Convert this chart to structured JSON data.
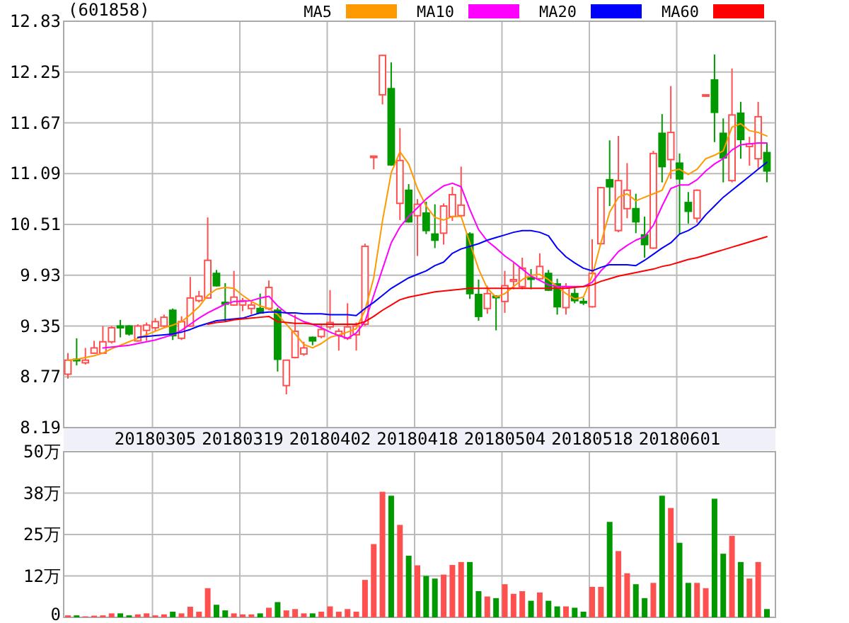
{
  "chart_data": [
    {
      "type": "candlestick",
      "title": "(601858)",
      "categories": [
        null,
        null,
        null,
        null,
        null,
        null,
        null,
        null,
        null,
        null,
        "20180305",
        null,
        null,
        null,
        null,
        null,
        null,
        null,
        null,
        null,
        "20180319",
        null,
        null,
        null,
        null,
        null,
        null,
        null,
        null,
        null,
        "20180402",
        null,
        null,
        null,
        null,
        null,
        null,
        null,
        null,
        null,
        "20180418",
        null,
        null,
        null,
        null,
        null,
        null,
        null,
        null,
        null,
        "20180504",
        null,
        null,
        null,
        null,
        null,
        null,
        null,
        null,
        null,
        "20180518",
        null,
        null,
        null,
        null,
        null,
        null,
        null,
        null,
        null,
        "20180601",
        null,
        null,
        null,
        null,
        null,
        null,
        null,
        null,
        null,
        null
      ],
      "ohlc": [
        [
          8.8,
          9.04,
          8.75,
          8.96
        ],
        [
          8.97,
          9.21,
          8.9,
          8.96
        ],
        [
          8.93,
          9.1,
          8.91,
          8.96
        ],
        [
          9.04,
          9.18,
          9.03,
          9.1
        ],
        [
          9.04,
          9.35,
          9.03,
          9.17
        ],
        [
          9.17,
          9.35,
          9.15,
          9.33
        ],
        [
          9.35,
          9.42,
          9.22,
          9.33
        ],
        [
          9.35,
          9.36,
          9.24,
          9.26
        ],
        [
          9.18,
          9.37,
          9.17,
          9.35
        ],
        [
          9.3,
          9.39,
          9.18,
          9.36
        ],
        [
          9.33,
          9.44,
          9.29,
          9.4
        ],
        [
          9.35,
          9.48,
          9.34,
          9.45
        ],
        [
          9.53,
          9.55,
          9.19,
          9.24
        ],
        [
          9.21,
          9.46,
          9.19,
          9.4
        ],
        [
          9.35,
          9.91,
          9.34,
          9.67
        ],
        [
          9.64,
          9.75,
          9.62,
          9.69
        ],
        [
          9.67,
          10.59,
          9.66,
          10.1
        ],
        [
          9.95,
          9.99,
          9.8,
          9.81
        ],
        [
          9.62,
          9.84,
          9.4,
          9.6
        ],
        [
          9.59,
          9.98,
          9.58,
          9.68
        ],
        [
          9.59,
          9.67,
          9.52,
          9.64
        ],
        [
          9.55,
          9.64,
          9.48,
          9.59
        ],
        [
          9.55,
          9.72,
          9.49,
          9.5
        ],
        [
          9.55,
          9.87,
          9.53,
          9.79
        ],
        [
          9.53,
          9.56,
          8.83,
          8.97
        ],
        [
          8.67,
          8.96,
          8.57,
          8.96
        ],
        [
          8.99,
          9.48,
          8.98,
          9.29
        ],
        [
          9.03,
          9.17,
          9.01,
          9.1
        ],
        [
          9.22,
          9.23,
          9.13,
          9.18
        ],
        [
          9.23,
          9.36,
          9.21,
          9.31
        ],
        [
          9.34,
          9.76,
          9.31,
          9.39
        ],
        [
          9.24,
          9.32,
          9.07,
          9.29
        ],
        [
          9.21,
          9.61,
          9.19,
          9.34
        ],
        [
          9.25,
          9.39,
          9.07,
          9.35
        ],
        [
          9.37,
          10.29,
          9.35,
          10.26
        ],
        [
          11.29,
          11.29,
          11.14,
          11.29
        ],
        [
          11.99,
          12.44,
          11.88,
          12.44
        ],
        [
          12.06,
          12.36,
          11.18,
          11.19
        ],
        [
          10.75,
          11.61,
          10.56,
          11.24
        ],
        [
          10.9,
          10.97,
          10.53,
          10.54
        ],
        [
          10.61,
          10.8,
          10.15,
          10.74
        ],
        [
          10.64,
          10.77,
          10.4,
          10.44
        ],
        [
          10.4,
          10.74,
          10.24,
          10.33
        ],
        [
          10.41,
          10.75,
          10.28,
          10.72
        ],
        [
          10.6,
          10.94,
          10.55,
          10.85
        ],
        [
          10.61,
          11.17,
          10.6,
          10.73
        ],
        [
          10.4,
          10.42,
          9.66,
          9.72
        ],
        [
          9.71,
          9.88,
          9.41,
          9.46
        ],
        [
          9.55,
          9.81,
          9.49,
          9.72
        ],
        [
          9.69,
          9.7,
          9.3,
          9.68
        ],
        [
          9.63,
          9.98,
          9.5,
          9.81
        ],
        [
          9.86,
          10.07,
          9.77,
          9.88
        ],
        [
          9.8,
          10.13,
          9.77,
          10.01
        ],
        [
          9.9,
          10.0,
          9.77,
          9.89
        ],
        [
          9.89,
          10.18,
          9.88,
          10.03
        ],
        [
          9.95,
          9.99,
          9.75,
          9.76
        ],
        [
          9.83,
          9.89,
          9.48,
          9.57
        ],
        [
          9.56,
          9.84,
          9.48,
          9.8
        ],
        [
          9.72,
          9.78,
          9.61,
          9.64
        ],
        [
          9.63,
          9.67,
          9.59,
          9.62
        ],
        [
          9.57,
          10.34,
          9.56,
          9.95
        ],
        [
          10.29,
          10.94,
          10.28,
          10.93
        ],
        [
          11.02,
          11.47,
          10.72,
          10.94
        ],
        [
          10.44,
          11.52,
          10.42,
          11.01
        ],
        [
          10.69,
          11.21,
          10.58,
          10.9
        ],
        [
          10.69,
          10.86,
          10.41,
          10.54
        ],
        [
          10.39,
          10.6,
          10.13,
          10.28
        ],
        [
          10.24,
          11.35,
          10.23,
          11.32
        ],
        [
          11.55,
          11.77,
          10.99,
          11.17
        ],
        [
          11.25,
          12.09,
          11.03,
          11.56
        ],
        [
          11.21,
          11.32,
          10.4,
          11.03
        ],
        [
          10.76,
          10.88,
          10.52,
          10.66
        ],
        [
          10.58,
          10.91,
          10.53,
          10.9
        ],
        [
          11.99,
          11.99,
          11.99,
          11.99
        ],
        [
          12.16,
          12.45,
          11.45,
          11.79
        ],
        [
          11.55,
          11.72,
          10.99,
          11.27
        ],
        [
          11.01,
          12.29,
          10.99,
          11.76
        ],
        [
          11.78,
          11.91,
          11.26,
          11.48
        ],
        [
          11.4,
          11.51,
          11.18,
          11.43
        ],
        [
          11.26,
          11.91,
          11.15,
          11.74
        ],
        [
          11.33,
          11.44,
          10.99,
          11.12
        ]
      ],
      "colors": [
        "#ff5050",
        "#009900",
        "#ff5050",
        "#ff5050",
        "#ff5050",
        "#ff5050",
        "#009900",
        "#009900",
        "#ff5050",
        "#ff5050",
        "#ff5050",
        "#ff5050",
        "#009900",
        "#ff5050",
        "#ff5050",
        "#ff5050",
        "#ff5050",
        "#009900",
        "#009900",
        "#ff5050",
        "#ff5050",
        "#ff5050",
        "#009900",
        "#ff5050",
        "#009900",
        "#ff5050",
        "#ff5050",
        "#ff5050",
        "#009900",
        "#ff5050",
        "#ff5050",
        "#ff5050",
        "#ff5050",
        "#ff5050",
        "#ff5050",
        "#ff5050",
        "#ff5050",
        "#009900",
        "#ff5050",
        "#009900",
        "#ff5050",
        "#009900",
        "#009900",
        "#ff5050",
        "#ff5050",
        "#ff5050",
        "#009900",
        "#009900",
        "#ff5050",
        "#009900",
        "#ff5050",
        "#ff5050",
        "#ff5050",
        "#009900",
        "#ff5050",
        "#009900",
        "#009900",
        "#ff5050",
        "#009900",
        "#009900",
        "#ff5050",
        "#ff5050",
        "#009900",
        "#ff5050",
        "#ff5050",
        "#009900",
        "#009900",
        "#ff5050",
        "#009900",
        "#ff5050",
        "#009900",
        "#009900",
        "#ff5050",
        "#ff5050",
        "#009900",
        "#009900",
        "#ff5050",
        "#009900",
        "#ff5050",
        "#ff5050",
        "#009900"
      ],
      "series": [
        {
          "name": "MA5",
          "type": "line",
          "color": "#ff9900",
          "values": [
            8.96,
            8.97,
            8.99,
            9.01,
            9.04,
            9.09,
            9.13,
            9.17,
            9.21,
            9.25,
            9.29,
            9.33,
            9.36,
            9.4,
            9.48,
            9.57,
            9.7,
            9.77,
            9.79,
            9.78,
            9.7,
            9.63,
            9.58,
            9.55,
            9.48,
            9.37,
            9.26,
            9.14,
            9.1,
            9.15,
            9.22,
            9.25,
            9.28,
            9.32,
            9.53,
            9.9,
            10.55,
            11.1,
            11.34,
            11.2,
            10.92,
            10.72,
            10.59,
            10.56,
            10.6,
            10.6,
            10.3,
            10.0,
            9.78,
            9.68,
            9.72,
            9.8,
            9.88,
            9.93,
            9.94,
            9.88,
            9.8,
            9.72,
            9.66,
            9.68,
            9.92,
            10.3,
            10.65,
            10.82,
            10.86,
            10.78,
            10.82,
            10.86,
            10.9,
            11.12,
            11.14,
            11.08,
            11.14,
            11.26,
            11.3,
            11.35,
            11.62,
            11.66,
            11.58,
            11.56,
            11.52
          ]
        },
        {
          "name": "MA10",
          "type": "line",
          "color": "#ff00ff",
          "values": [
            null,
            null,
            null,
            null,
            9.1,
            9.11,
            9.12,
            9.13,
            9.15,
            9.17,
            9.19,
            9.22,
            9.25,
            9.3,
            9.37,
            9.44,
            9.5,
            9.55,
            9.6,
            9.63,
            9.63,
            9.64,
            9.67,
            9.69,
            9.58,
            9.5,
            9.45,
            9.4,
            9.37,
            9.33,
            9.28,
            9.24,
            9.21,
            9.27,
            9.4,
            9.7,
            10.0,
            10.3,
            10.48,
            10.6,
            10.7,
            10.8,
            10.88,
            10.95,
            10.98,
            10.94,
            10.68,
            10.45,
            10.32,
            10.24,
            10.15,
            10.08,
            10.0,
            9.92,
            9.87,
            9.82,
            9.8,
            9.8,
            9.8,
            9.8,
            9.85,
            9.98,
            10.08,
            10.2,
            10.27,
            10.33,
            10.37,
            10.5,
            10.72,
            10.92,
            10.96,
            10.96,
            11.02,
            11.12,
            11.2,
            11.26,
            11.36,
            11.42,
            11.43,
            11.44,
            11.44
          ]
        },
        {
          "name": "MA20",
          "type": "line",
          "color": "#0000ff",
          "values": [
            null,
            null,
            null,
            null,
            null,
            null,
            null,
            null,
            9.22,
            9.23,
            9.24,
            9.25,
            9.26,
            9.28,
            9.31,
            9.35,
            9.38,
            9.41,
            9.42,
            9.43,
            9.44,
            9.47,
            9.5,
            9.51,
            9.51,
            9.5,
            9.5,
            9.49,
            9.49,
            9.49,
            9.48,
            9.48,
            9.48,
            9.47,
            9.55,
            9.62,
            9.7,
            9.78,
            9.84,
            9.9,
            9.94,
            9.98,
            10.04,
            10.08,
            10.18,
            10.23,
            10.26,
            10.29,
            10.33,
            10.36,
            10.39,
            10.42,
            10.44,
            10.44,
            10.42,
            10.38,
            10.24,
            10.14,
            10.07,
            10.01,
            9.98,
            10.02,
            10.05,
            10.05,
            10.05,
            10.04,
            10.1,
            10.17,
            10.24,
            10.3,
            10.4,
            10.44,
            10.5,
            10.62,
            10.72,
            10.82,
            10.9,
            10.98,
            11.06,
            11.14,
            11.22
          ]
        },
        {
          "name": "MA60",
          "type": "line",
          "color": "#ff0000",
          "values": [
            null,
            null,
            null,
            null,
            null,
            null,
            null,
            null,
            null,
            null,
            null,
            null,
            null,
            null,
            null,
            null,
            9.37,
            9.39,
            9.4,
            9.42,
            9.43,
            9.44,
            9.45,
            9.46,
            9.4,
            9.39,
            9.38,
            9.38,
            9.37,
            9.37,
            9.37,
            9.37,
            9.37,
            9.37,
            9.4,
            9.46,
            9.53,
            9.59,
            9.65,
            9.68,
            9.7,
            9.72,
            9.74,
            9.75,
            9.76,
            9.77,
            9.78,
            9.78,
            9.78,
            9.78,
            9.78,
            9.78,
            9.78,
            9.78,
            9.78,
            9.78,
            9.78,
            9.78,
            9.79,
            9.8,
            9.82,
            9.86,
            9.89,
            9.92,
            9.94,
            9.96,
            9.98,
            10.0,
            10.03,
            10.05,
            10.08,
            10.11,
            10.13,
            10.16,
            10.19,
            10.22,
            10.25,
            10.28,
            10.31,
            10.34,
            10.37
          ]
        }
      ],
      "ylim": [
        8.19,
        12.83
      ],
      "yticks": [
        8.19,
        8.77,
        9.35,
        9.93,
        10.51,
        11.09,
        11.67,
        12.25,
        12.83
      ],
      "grid": true,
      "legend": "top right"
    },
    {
      "type": "bar",
      "categories": [
        null,
        null,
        null,
        null,
        null,
        null,
        null,
        null,
        null,
        null,
        "20180305",
        null,
        null,
        null,
        null,
        null,
        null,
        null,
        null,
        null,
        "20180319",
        null,
        null,
        null,
        null,
        null,
        null,
        null,
        null,
        null,
        "20180402",
        null,
        null,
        null,
        null,
        null,
        null,
        null,
        null,
        null,
        "20180418",
        null,
        null,
        null,
        null,
        null,
        null,
        null,
        null,
        null,
        "20180504",
        null,
        null,
        null,
        null,
        null,
        null,
        null,
        null,
        null,
        "20180518",
        null,
        null,
        null,
        null,
        null,
        null,
        null,
        null,
        null,
        "20180601",
        null,
        null,
        null,
        null,
        null,
        null,
        null,
        null,
        null,
        null
      ],
      "values": [
        0.6,
        0.6,
        0.3,
        0.5,
        0.6,
        1.2,
        1.2,
        0.6,
        0.9,
        1.2,
        0.6,
        0.9,
        1.7,
        1.2,
        3.2,
        1.7,
        8.8,
        3.8,
        2.1,
        1.2,
        0.9,
        0.9,
        1.2,
        2.9,
        4.6,
        2.1,
        2.5,
        1.2,
        1.2,
        1.7,
        3.3,
        1.7,
        2.5,
        1.7,
        11.3,
        22.1,
        37.9,
        36.7,
        27.9,
        18.6,
        15.7,
        12.5,
        11.7,
        12.9,
        15.8,
        16.7,
        16.7,
        7.9,
        6.3,
        5.8,
        10.0,
        7.1,
        7.9,
        5.0,
        7.5,
        5.0,
        3.3,
        3.3,
        2.9,
        1.7,
        9.2,
        9.2,
        28.8,
        20.0,
        13.3,
        10.0,
        5.8,
        10.4,
        36.7,
        33.0,
        22.5,
        10.4,
        10.4,
        8.8,
        35.8,
        19.2,
        24.6,
        16.7,
        11.7,
        16.7,
        2.5
      ],
      "colors": [
        "#ff5050",
        "#009900",
        "#ff5050",
        "#ff5050",
        "#ff5050",
        "#ff5050",
        "#009900",
        "#009900",
        "#ff5050",
        "#ff5050",
        "#ff5050",
        "#ff5050",
        "#009900",
        "#ff5050",
        "#ff5050",
        "#ff5050",
        "#ff5050",
        "#009900",
        "#009900",
        "#ff5050",
        "#ff5050",
        "#ff5050",
        "#009900",
        "#ff5050",
        "#009900",
        "#ff5050",
        "#ff5050",
        "#ff5050",
        "#009900",
        "#ff5050",
        "#ff5050",
        "#ff5050",
        "#ff5050",
        "#ff5050",
        "#ff5050",
        "#ff5050",
        "#ff5050",
        "#009900",
        "#ff5050",
        "#009900",
        "#ff5050",
        "#009900",
        "#009900",
        "#ff5050",
        "#ff5050",
        "#ff5050",
        "#009900",
        "#009900",
        "#ff5050",
        "#009900",
        "#ff5050",
        "#ff5050",
        "#ff5050",
        "#009900",
        "#ff5050",
        "#009900",
        "#009900",
        "#ff5050",
        "#009900",
        "#009900",
        "#ff5050",
        "#ff5050",
        "#009900",
        "#ff5050",
        "#ff5050",
        "#009900",
        "#009900",
        "#ff5050",
        "#009900",
        "#ff5050",
        "#009900",
        "#009900",
        "#ff5050",
        "#ff5050",
        "#009900",
        "#009900",
        "#ff5050",
        "#009900",
        "#ff5050",
        "#ff5050",
        "#009900"
      ],
      "ylim": [
        0,
        50
      ],
      "yticks": [
        0,
        {
          "value": 12.5,
          "label": "12万"
        },
        {
          "value": 25,
          "label": "25万"
        },
        {
          "value": 37.5,
          "label": "38万"
        },
        {
          "value": 50,
          "label": "50万"
        }
      ],
      "grid": true,
      "tick_labels": "y"
    }
  ]
}
